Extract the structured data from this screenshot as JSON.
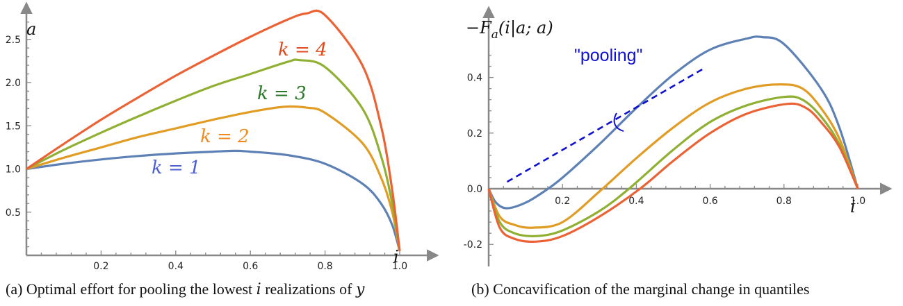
{
  "figure": {
    "captions": {
      "a": {
        "prefix": "(a) Optimal effort for pooling the lowest",
        "var1": "i",
        "middle": "realizations of",
        "var2": "y"
      },
      "b": {
        "text": "(b) Concavification of the marginal change in quantiles"
      }
    }
  },
  "chart_data": [
    {
      "id": "a",
      "type": "line",
      "title": "",
      "xlabel": "i",
      "ylabel": "a",
      "xlim": [
        0,
        1.0
      ],
      "ylim": [
        0,
        2.8
      ],
      "x_ticks": [
        "0.2",
        "0.4",
        "0.6",
        "0.8",
        "1.0"
      ],
      "y_ticks": [
        "0.5",
        "1.0",
        "1.5",
        "2.0",
        "2.5"
      ],
      "grid": false,
      "colors": {
        "k1": "#5e81b5",
        "k2": "#e19c24",
        "k3": "#8fb032",
        "k4": "#eb6235"
      },
      "series": [
        {
          "name": "k = 1",
          "color": "#5e81b5",
          "x": [
            0,
            0.1,
            0.2,
            0.3,
            0.4,
            0.5,
            0.56,
            0.6,
            0.7,
            0.8,
            0.9,
            0.95,
            0.98,
            1.0
          ],
          "y": [
            1.0,
            1.06,
            1.11,
            1.15,
            1.18,
            1.2,
            1.21,
            1.2,
            1.16,
            1.06,
            0.83,
            0.6,
            0.35,
            0.05
          ]
        },
        {
          "name": "k = 2",
          "color": "#e19c24",
          "x": [
            0,
            0.1,
            0.2,
            0.3,
            0.4,
            0.5,
            0.6,
            0.69,
            0.75,
            0.8,
            0.9,
            0.95,
            0.98,
            1.0
          ],
          "y": [
            1.0,
            1.13,
            1.25,
            1.37,
            1.47,
            1.57,
            1.66,
            1.72,
            1.71,
            1.65,
            1.3,
            0.9,
            0.5,
            0.05
          ]
        },
        {
          "name": "k = 3",
          "color": "#8fb032",
          "x": [
            0,
            0.1,
            0.2,
            0.3,
            0.4,
            0.5,
            0.6,
            0.7,
            0.73,
            0.8,
            0.9,
            0.95,
            0.98,
            1.0
          ],
          "y": [
            1.0,
            1.22,
            1.42,
            1.61,
            1.79,
            1.96,
            2.1,
            2.24,
            2.26,
            2.18,
            1.7,
            1.15,
            0.6,
            0.05
          ]
        },
        {
          "name": "k = 4",
          "color": "#eb6235",
          "x": [
            0,
            0.1,
            0.2,
            0.3,
            0.4,
            0.5,
            0.6,
            0.7,
            0.75,
            0.8,
            0.9,
            0.95,
            0.98,
            1.0
          ],
          "y": [
            1.0,
            1.29,
            1.57,
            1.83,
            2.08,
            2.31,
            2.53,
            2.73,
            2.8,
            2.78,
            2.2,
            1.5,
            0.75,
            0.05
          ]
        }
      ],
      "annotations": [
        "k = 4",
        "k = 3",
        "k = 2",
        "k = 1"
      ]
    },
    {
      "id": "b",
      "type": "line",
      "title": "",
      "xlabel": "i",
      "ylabel": "−F_a(i|a; a)",
      "xlim": [
        0,
        1.0
      ],
      "ylim": [
        -0.28,
        0.56
      ],
      "x_ticks": [
        "0.2",
        "0.4",
        "0.6",
        "0.8",
        "1.0"
      ],
      "y_ticks": [
        "-0.2",
        "0.0",
        "0.2",
        "0.4"
      ],
      "grid": false,
      "series": [
        {
          "color": "#5e81b5",
          "x": [
            0,
            0.02,
            0.05,
            0.1,
            0.15,
            0.2,
            0.3,
            0.4,
            0.5,
            0.6,
            0.7,
            0.74,
            0.8,
            0.9,
            0.95,
            1.0
          ],
          "y": [
            0,
            -0.05,
            -0.07,
            -0.05,
            -0.01,
            0.04,
            0.16,
            0.29,
            0.41,
            0.5,
            0.54,
            0.545,
            0.52,
            0.36,
            0.22,
            0
          ]
        },
        {
          "color": "#e19c24",
          "x": [
            0,
            0.03,
            0.07,
            0.12,
            0.2,
            0.3,
            0.4,
            0.5,
            0.6,
            0.7,
            0.79,
            0.85,
            0.9,
            0.95,
            1.0
          ],
          "y": [
            0,
            -0.1,
            -0.13,
            -0.14,
            -0.12,
            -0.01,
            0.11,
            0.22,
            0.31,
            0.36,
            0.375,
            0.36,
            0.29,
            0.18,
            0
          ]
        },
        {
          "color": "#8fb032",
          "x": [
            0,
            0.03,
            0.07,
            0.13,
            0.2,
            0.3,
            0.38,
            0.5,
            0.6,
            0.7,
            0.8,
            0.85,
            0.9,
            0.95,
            1.0
          ],
          "y": [
            0,
            -0.12,
            -0.16,
            -0.17,
            -0.15,
            -0.08,
            0.0,
            0.14,
            0.24,
            0.3,
            0.33,
            0.32,
            0.26,
            0.16,
            0
          ]
        },
        {
          "color": "#eb6235",
          "x": [
            0,
            0.03,
            0.07,
            0.13,
            0.2,
            0.3,
            0.41,
            0.5,
            0.6,
            0.7,
            0.81,
            0.86,
            0.9,
            0.95,
            1.0
          ],
          "y": [
            0,
            -0.14,
            -0.18,
            -0.19,
            -0.17,
            -0.1,
            0.0,
            0.1,
            0.2,
            0.27,
            0.305,
            0.29,
            0.24,
            0.15,
            0
          ]
        }
      ],
      "tangent": {
        "color": "#1010d0",
        "x": [
          0.05,
          0.58
        ],
        "y": [
          0.025,
          0.43
        ]
      },
      "annotation": {
        "text": "\"pooling\"",
        "color": "#1010d0"
      }
    }
  ]
}
